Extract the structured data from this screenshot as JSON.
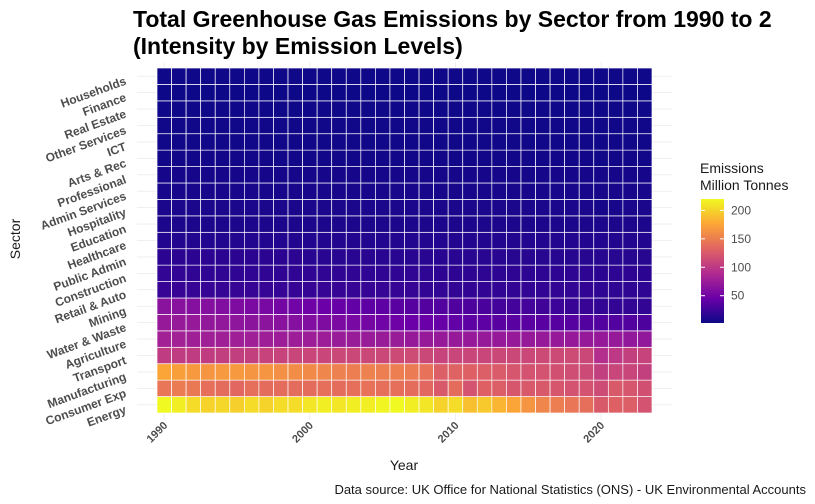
{
  "chart_data": {
    "type": "heatmap",
    "title_line1": "Total Greenhouse Gas Emissions by Sector from 1990 to 2",
    "title_line2": "(Intensity by Emission Levels)",
    "xlabel": "Year",
    "ylabel": "Sector",
    "caption": "Data source: UK Office for National Statistics (ONS) - UK Environmental Accounts",
    "x_ticks": [
      "1990",
      "2000",
      "2010",
      "2020"
    ],
    "years": [
      1990,
      1991,
      1992,
      1993,
      1994,
      1995,
      1996,
      1997,
      1998,
      1999,
      2000,
      2001,
      2002,
      2003,
      2004,
      2005,
      2006,
      2007,
      2008,
      2009,
      2010,
      2011,
      2012,
      2013,
      2014,
      2015,
      2016,
      2017,
      2018,
      2019,
      2020,
      2021,
      2022,
      2023
    ],
    "sectors": [
      "Energy",
      "Consumer Exp",
      "Manufacturing",
      "Transport",
      "Agriculture",
      "Water & Waste",
      "Mining",
      "Retail & Auto",
      "Construction",
      "Public Admin",
      "Healthcare",
      "Education",
      "Hospitality",
      "Admin Services",
      "Professional",
      "Arts & Rec",
      "ICT",
      "Other Services",
      "Real Estate",
      "Finance",
      "Households"
    ],
    "values": [
      [
        220,
        215,
        205,
        200,
        202,
        198,
        205,
        200,
        205,
        205,
        210,
        215,
        210,
        215,
        215,
        218,
        220,
        215,
        210,
        200,
        205,
        190,
        195,
        185,
        175,
        165,
        155,
        150,
        145,
        140,
        125,
        130,
        128,
        120
      ],
      [
        145,
        148,
        146,
        140,
        138,
        135,
        140,
        138,
        138,
        138,
        138,
        140,
        138,
        140,
        142,
        140,
        140,
        138,
        135,
        125,
        138,
        120,
        130,
        128,
        122,
        125,
        125,
        122,
        120,
        120,
        115,
        125,
        122,
        118
      ],
      [
        175,
        172,
        168,
        165,
        168,
        168,
        165,
        165,
        162,
        160,
        158,
        155,
        152,
        150,
        152,
        150,
        150,
        148,
        142,
        128,
        132,
        130,
        128,
        126,
        122,
        120,
        120,
        118,
        116,
        114,
        105,
        110,
        110,
        106
      ],
      [
        102,
        102,
        102,
        103,
        105,
        105,
        106,
        108,
        108,
        110,
        110,
        110,
        112,
        112,
        112,
        112,
        114,
        115,
        112,
        108,
        110,
        110,
        110,
        112,
        112,
        112,
        114,
        114,
        115,
        112,
        92,
        100,
        106,
        108
      ],
      [
        80,
        80,
        78,
        78,
        78,
        78,
        78,
        77,
        76,
        76,
        76,
        76,
        74,
        74,
        74,
        74,
        74,
        72,
        72,
        72,
        72,
        72,
        72,
        72,
        72,
        72,
        72,
        72,
        72,
        72,
        72,
        72,
        70,
        70
      ],
      [
        72,
        72,
        72,
        70,
        70,
        68,
        66,
        66,
        64,
        62,
        60,
        58,
        56,
        55,
        52,
        50,
        48,
        46,
        45,
        44,
        42,
        40,
        40,
        38,
        38,
        38,
        38,
        36,
        36,
        34,
        34,
        34,
        34,
        32
      ],
      [
        65,
        64,
        62,
        62,
        60,
        58,
        56,
        55,
        52,
        50,
        48,
        46,
        44,
        42,
        40,
        40,
        38,
        36,
        35,
        34,
        33,
        32,
        30,
        28,
        28,
        28,
        26,
        24,
        22,
        22,
        20,
        20,
        20,
        20
      ],
      [
        22,
        22,
        21,
        21,
        21,
        21,
        21,
        21,
        21,
        21,
        21,
        21,
        21,
        21,
        21,
        21,
        21,
        21,
        20,
        20,
        20,
        20,
        20,
        20,
        20,
        20,
        20,
        20,
        20,
        20,
        18,
        18,
        18,
        18
      ],
      [
        20,
        20,
        19,
        19,
        19,
        19,
        19,
        19,
        19,
        19,
        19,
        19,
        19,
        19,
        19,
        19,
        19,
        19,
        18,
        17,
        17,
        17,
        17,
        17,
        17,
        17,
        17,
        17,
        17,
        17,
        16,
        17,
        17,
        16
      ],
      [
        16,
        16,
        16,
        16,
        16,
        16,
        16,
        16,
        16,
        16,
        15,
        15,
        15,
        15,
        15,
        15,
        15,
        15,
        15,
        15,
        15,
        15,
        15,
        15,
        14,
        14,
        14,
        14,
        14,
        14,
        14,
        14,
        14,
        14
      ],
      [
        12,
        12,
        12,
        12,
        12,
        12,
        12,
        12,
        12,
        12,
        12,
        12,
        12,
        12,
        12,
        12,
        12,
        12,
        12,
        12,
        12,
        12,
        12,
        12,
        12,
        12,
        12,
        12,
        12,
        12,
        12,
        12,
        12,
        12
      ],
      [
        9,
        9,
        9,
        9,
        9,
        9,
        9,
        9,
        9,
        9,
        9,
        9,
        9,
        9,
        9,
        9,
        9,
        9,
        9,
        9,
        9,
        9,
        9,
        9,
        9,
        9,
        9,
        9,
        9,
        9,
        9,
        9,
        9,
        9
      ],
      [
        8,
        8,
        8,
        8,
        8,
        8,
        8,
        8,
        8,
        8,
        8,
        8,
        8,
        8,
        8,
        8,
        8,
        8,
        8,
        8,
        8,
        8,
        8,
        8,
        8,
        8,
        8,
        8,
        8,
        8,
        6,
        7,
        8,
        8
      ],
      [
        7,
        7,
        7,
        7,
        7,
        7,
        7,
        7,
        7,
        7,
        7,
        7,
        7,
        7,
        7,
        7,
        7,
        7,
        7,
        7,
        7,
        7,
        7,
        7,
        7,
        7,
        7,
        7,
        7,
        7,
        7,
        7,
        7,
        7
      ],
      [
        6,
        6,
        6,
        6,
        6,
        6,
        6,
        6,
        6,
        6,
        6,
        6,
        6,
        6,
        6,
        6,
        6,
        6,
        6,
        6,
        6,
        6,
        6,
        6,
        6,
        6,
        6,
        6,
        6,
        6,
        6,
        6,
        6,
        6
      ],
      [
        5,
        5,
        5,
        5,
        5,
        5,
        5,
        5,
        5,
        5,
        5,
        5,
        5,
        5,
        5,
        5,
        5,
        5,
        5,
        5,
        5,
        5,
        5,
        5,
        5,
        5,
        5,
        5,
        5,
        5,
        4,
        5,
        5,
        5
      ],
      [
        4,
        4,
        4,
        4,
        4,
        4,
        4,
        4,
        4,
        4,
        4,
        4,
        4,
        4,
        4,
        4,
        4,
        4,
        4,
        4,
        4,
        4,
        4,
        4,
        4,
        4,
        4,
        4,
        4,
        4,
        4,
        4,
        4,
        4
      ],
      [
        4,
        4,
        4,
        4,
        4,
        4,
        4,
        4,
        4,
        4,
        4,
        4,
        4,
        4,
        4,
        4,
        4,
        4,
        4,
        4,
        4,
        4,
        4,
        4,
        4,
        4,
        4,
        4,
        4,
        4,
        4,
        4,
        4,
        4
      ],
      [
        3,
        3,
        3,
        3,
        3,
        3,
        3,
        3,
        3,
        3,
        3,
        3,
        3,
        3,
        3,
        3,
        3,
        3,
        3,
        3,
        3,
        3,
        3,
        3,
        3,
        3,
        3,
        3,
        3,
        3,
        3,
        3,
        3,
        3
      ],
      [
        2,
        2,
        2,
        2,
        2,
        2,
        2,
        2,
        2,
        2,
        2,
        2,
        2,
        2,
        2,
        2,
        2,
        2,
        2,
        2,
        2,
        2,
        2,
        2,
        2,
        2,
        2,
        2,
        2,
        2,
        2,
        2,
        2,
        2
      ],
      [
        3,
        3,
        3,
        3,
        3,
        3,
        3,
        3,
        3,
        3,
        3,
        3,
        3,
        3,
        3,
        3,
        3,
        3,
        3,
        3,
        3,
        3,
        3,
        3,
        3,
        3,
        3,
        3,
        3,
        3,
        3,
        3,
        3,
        3
      ]
    ],
    "legend": {
      "title_line1": "Emissions",
      "title_line2": "Million Tonnes",
      "ticks": [
        50,
        100,
        150,
        200
      ],
      "range": [
        2,
        220
      ]
    },
    "colorscale": "plasma",
    "colors": [
      "#0d0887",
      "#6a00a8",
      "#b12a90",
      "#e16462",
      "#fca636",
      "#f0f921"
    ],
    "grid": true
  }
}
